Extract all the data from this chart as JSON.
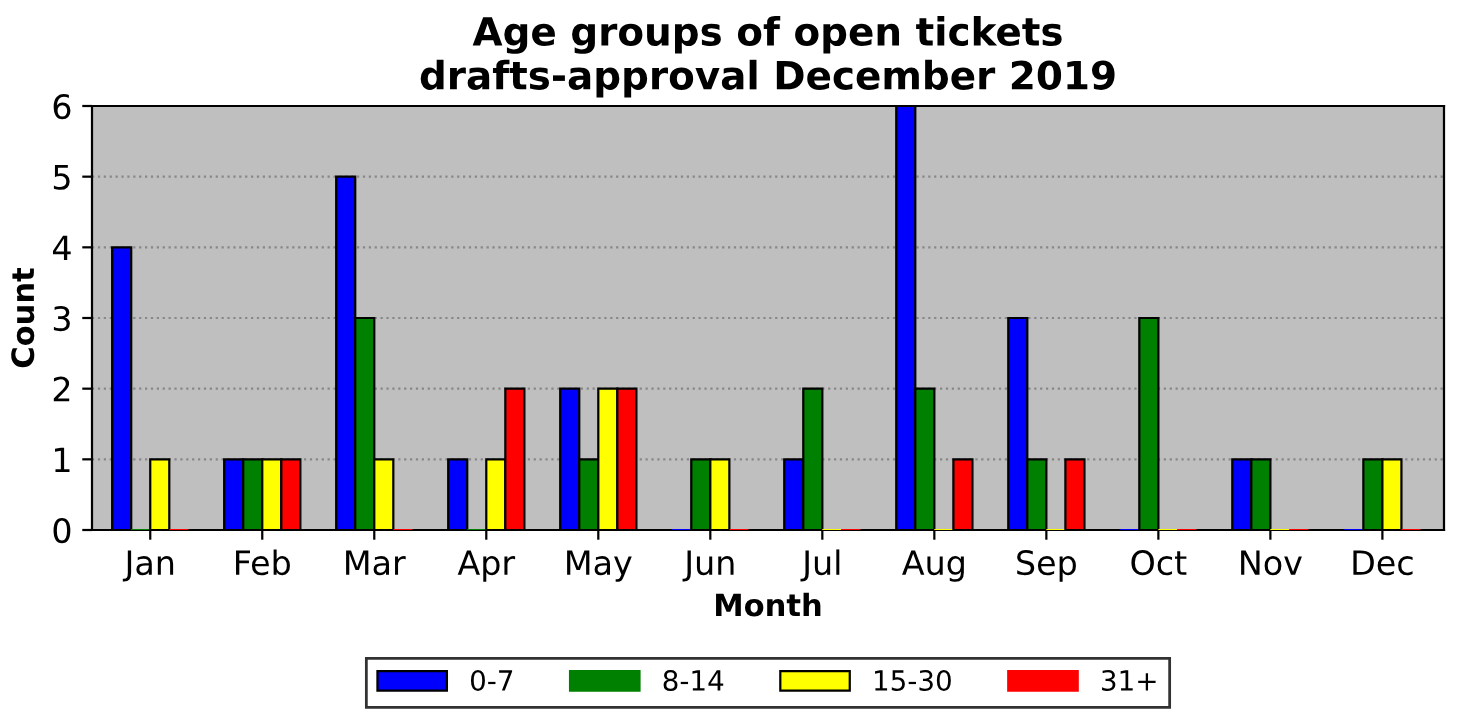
{
  "chart_data": {
    "type": "bar",
    "title": "Age groups of open tickets\ndrafts-approval December 2019",
    "xlabel": "Month",
    "ylabel": "Count",
    "categories": [
      "Jan",
      "Feb",
      "Mar",
      "Apr",
      "May",
      "Jun",
      "Jul",
      "Aug",
      "Sep",
      "Oct",
      "Nov",
      "Dec"
    ],
    "series": [
      {
        "name": "0-7",
        "color": "#0000ff",
        "values": [
          4,
          1,
          5,
          1,
          2,
          0,
          1,
          6,
          3,
          0,
          1,
          0
        ]
      },
      {
        "name": "8-14",
        "color": "#008000",
        "values": [
          0,
          1,
          3,
          0,
          1,
          1,
          2,
          2,
          1,
          3,
          1,
          1
        ]
      },
      {
        "name": "15-30",
        "color": "#ffff00",
        "values": [
          1,
          1,
          1,
          1,
          2,
          1,
          0,
          0,
          0,
          0,
          0,
          1
        ]
      },
      {
        "name": "31+",
        "color": "#ff0000",
        "values": [
          0,
          1,
          0,
          2,
          2,
          0,
          0,
          1,
          1,
          0,
          0,
          0
        ]
      }
    ],
    "ylim": [
      0,
      6
    ],
    "yticks": [
      0,
      1,
      2,
      3,
      4,
      5,
      6
    ],
    "grid": "y",
    "legend": "bottom"
  }
}
